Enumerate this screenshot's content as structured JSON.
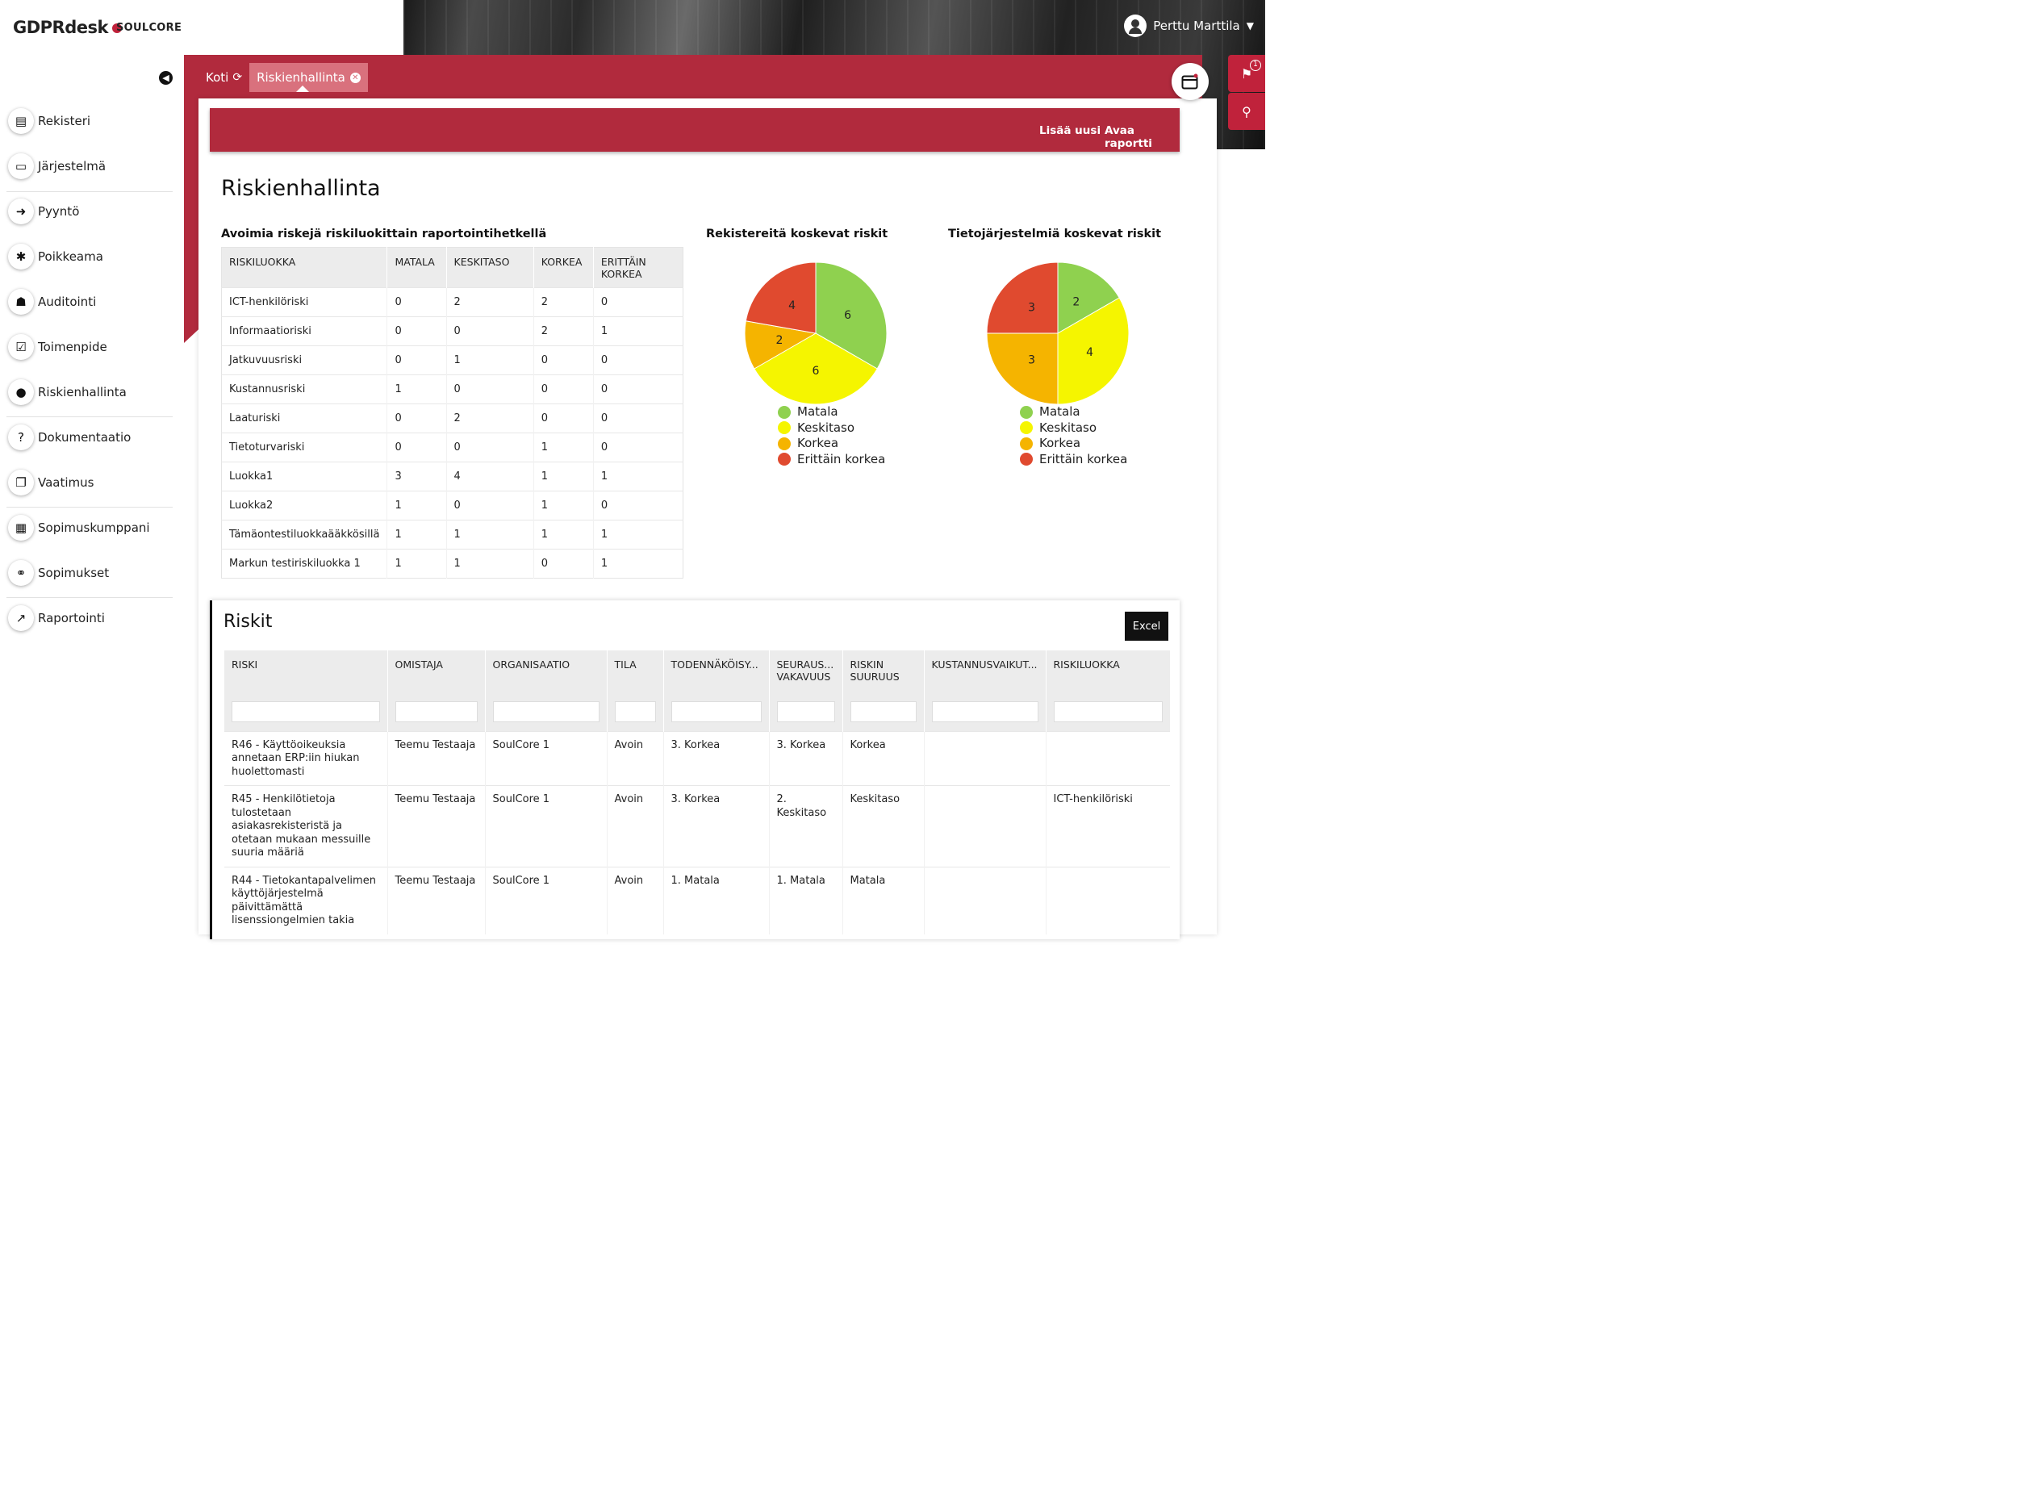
{
  "header": {
    "brand": "GDPRdesk",
    "org": "SOULCORE",
    "user": "Perttu Marttila"
  },
  "sidebar": {
    "items": [
      {
        "label": "Rekisteri",
        "icon": "book-icon",
        "glyph": "▤"
      },
      {
        "label": "Järjestelmä",
        "icon": "laptop-icon",
        "glyph": "▭"
      },
      {
        "label": "Pyyntö",
        "icon": "sign-in-icon",
        "glyph": "➜"
      },
      {
        "label": "Poikkeama",
        "icon": "bug-icon",
        "glyph": "✱"
      },
      {
        "label": "Auditointi",
        "icon": "user-secret-icon",
        "glyph": "☗"
      },
      {
        "label": "Toimenpide",
        "icon": "check-square-icon",
        "glyph": "☑"
      },
      {
        "label": "Riskienhallinta",
        "icon": "bomb-icon",
        "glyph": "●"
      },
      {
        "label": "Dokumentaatio",
        "icon": "question-circle-icon",
        "glyph": "?"
      },
      {
        "label": "Vaatimus",
        "icon": "clone-icon",
        "glyph": "❐"
      },
      {
        "label": "Sopimuskumppani",
        "icon": "building-icon",
        "glyph": "▦"
      },
      {
        "label": "Sopimukset",
        "icon": "handshake-icon",
        "glyph": "⚭"
      },
      {
        "label": "Raportointi",
        "icon": "line-chart-icon",
        "glyph": "↗"
      }
    ]
  },
  "breadcrumb": {
    "home": "Koti",
    "active": "Riskienhallinta"
  },
  "notifications": {
    "count": "1"
  },
  "actions": {
    "add": "Lisää uusi",
    "report": "Avaa raportti"
  },
  "page": {
    "title": "Riskienhallinta"
  },
  "risk_class_table": {
    "title": "Avoimia riskejä riskiluokittain raportointihetkellä",
    "headers": [
      "RISKILUOKKA",
      "MATALA",
      "KESKITASO",
      "KORKEA",
      "ERITTÄIN KORKEA"
    ],
    "rows": [
      [
        "ICT-henkilöriski",
        "0",
        "2",
        "2",
        "0"
      ],
      [
        "Informaatioriski",
        "0",
        "0",
        "2",
        "1"
      ],
      [
        "Jatkuvuusriski",
        "0",
        "1",
        "0",
        "0"
      ],
      [
        "Kustannusriski",
        "1",
        "0",
        "0",
        "0"
      ],
      [
        "Laaturiski",
        "0",
        "2",
        "0",
        "0"
      ],
      [
        "Tietoturvariski",
        "0",
        "0",
        "1",
        "0"
      ],
      [
        "Luokka1",
        "3",
        "4",
        "1",
        "1"
      ],
      [
        "Luokka2",
        "1",
        "0",
        "1",
        "0"
      ],
      [
        "Tämäontestiluokkaääkkösillä",
        "1",
        "1",
        "1",
        "1"
      ],
      [
        "Markun testiriskiluokka 1",
        "1",
        "1",
        "0",
        "1"
      ]
    ]
  },
  "colors": {
    "matala": "#8fd14f",
    "keskitaso": "#f5f500",
    "korkea": "#f5b400",
    "erittain_korkea": "#e04a2f",
    "brand_red": "#b12a3d"
  },
  "chart_data": [
    {
      "type": "pie",
      "title": "Rekistereitä koskevat riskit",
      "labels": [
        "Matala",
        "Keskitaso",
        "Korkea",
        "Erittäin korkea"
      ],
      "values": [
        6,
        6,
        2,
        4
      ]
    },
    {
      "type": "pie",
      "title": "Tietojärjestelmiä koskevat riskit",
      "labels": [
        "Matala",
        "Keskitaso",
        "Korkea",
        "Erittäin korkea"
      ],
      "values": [
        2,
        4,
        3,
        3
      ]
    }
  ],
  "risks": {
    "title": "Riskit",
    "excel": "Excel",
    "headers": [
      "RISKI",
      "OMISTAJA",
      "ORGANISAATIO",
      "TILA",
      "TODENNÄKÖISY...",
      "SEURAUS... VAKAVUUS",
      "RISKIN SUURUUS",
      "KUSTANNUSVAIKUT...",
      "RISKILUOKKA"
    ],
    "rows": [
      [
        "R46 - Käyttöoikeuksia annetaan ERP:iin hiukan huolettomasti",
        "Teemu Testaaja",
        "SoulCore 1",
        "Avoin",
        "3. Korkea",
        "3. Korkea",
        "Korkea",
        "",
        ""
      ],
      [
        "R45 - Henkilötietoja tulostetaan asiakasrekisteristä ja otetaan mukaan messuille suuria määriä",
        "Teemu Testaaja",
        "SoulCore 1",
        "Avoin",
        "3. Korkea",
        "2. Keskitaso",
        "Keskitaso",
        "",
        "ICT-henkilöriski"
      ],
      [
        "R44 - Tietokantapalvelimen käyttöjärjestelmä päivittämättä lisenssiongelmien takia",
        "Teemu Testaaja",
        "SoulCore 1",
        "Avoin",
        "1. Matala",
        "1. Matala",
        "Matala",
        "",
        ""
      ]
    ]
  }
}
